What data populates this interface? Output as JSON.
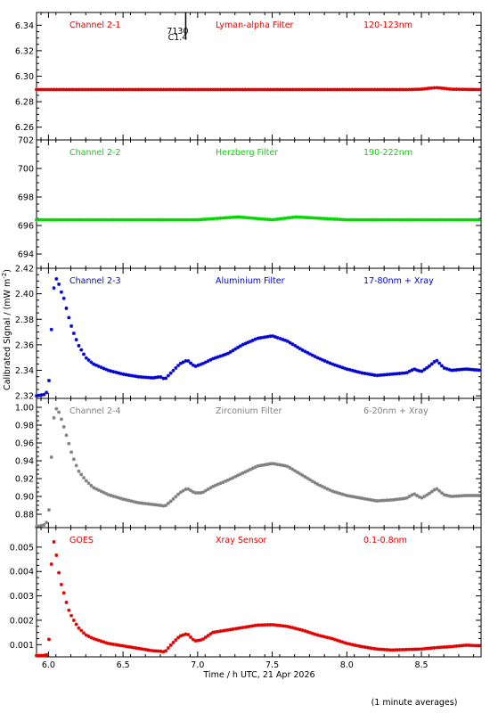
{
  "chart_data": {
    "type": "scatter",
    "x_label": "Time / h UTC, 21 Apr 2026",
    "y_label": "Calibrated Signal / (mW m",
    "y_label_sup": "-2",
    "y_label_end": ")",
    "footnote": "(1 minute averages)",
    "flare_annotation": {
      "lines": [
        "7130",
        "C1.4"
      ],
      "x": 6.92
    },
    "x_range": [
      5.92,
      8.9
    ],
    "x_ticks": [
      "6.0",
      "6.5",
      "7.0",
      "7.5",
      "8.0",
      "8.5"
    ],
    "x_tick_values": [
      6.0,
      6.5,
      7.0,
      7.5,
      8.0,
      8.5
    ],
    "panels": [
      {
        "channel": "Channel 2-1",
        "filter": "Lyman-alpha Filter",
        "band": "120-123nm",
        "color": "#e00000",
        "ylim": [
          6.25,
          6.35
        ],
        "y_ticks": [
          "6.26",
          "6.28",
          "6.30",
          "6.32",
          "6.34"
        ],
        "y_tick_values": [
          6.26,
          6.28,
          6.3,
          6.32,
          6.34
        ],
        "series_x": [
          5.92,
          6.5,
          7.0,
          7.5,
          8.0,
          8.4,
          8.5,
          8.55,
          8.6,
          8.65,
          8.7,
          8.9
        ],
        "series_y": [
          6.2895,
          6.2895,
          6.2895,
          6.2895,
          6.2895,
          6.2895,
          6.2898,
          6.2905,
          6.291,
          6.2905,
          6.2898,
          6.2895
        ]
      },
      {
        "channel": "Channel 2-2",
        "filter": "Herzberg Filter",
        "band": "190-222nm",
        "color": "#00d800",
        "ylim": [
          693,
          702
        ],
        "y_ticks": [
          "694",
          "696",
          "698",
          "700",
          "702"
        ],
        "y_tick_values": [
          694,
          696,
          698,
          700,
          702
        ],
        "series_x": [
          5.92,
          6.0,
          6.5,
          7.0,
          7.27,
          7.5,
          7.66,
          8.0,
          8.5,
          8.9
        ],
        "series_y": [
          696.4,
          696.4,
          696.4,
          696.4,
          696.6,
          696.4,
          696.6,
          696.4,
          696.4,
          696.4
        ],
        "_": ""
      },
      {
        "channel": "Channel 2-3",
        "filter": "Aluminium Filter",
        "band": "17-80nm + Xray",
        "color": "#0000d0",
        "ylim": [
          2.318,
          2.42
        ],
        "y_ticks": [
          "2.32",
          "2.34",
          "2.36",
          "2.38",
          "2.40",
          "2.42"
        ],
        "y_tick_values": [
          2.32,
          2.34,
          2.36,
          2.38,
          2.4,
          2.42
        ],
        "series_x": [
          5.92,
          5.97,
          6.0,
          6.02,
          6.04,
          6.06,
          6.08,
          6.1,
          6.13,
          6.16,
          6.2,
          6.25,
          6.3,
          6.4,
          6.5,
          6.6,
          6.7,
          6.75,
          6.78,
          6.83,
          6.88,
          6.93,
          6.98,
          7.03,
          7.1,
          7.2,
          7.3,
          7.4,
          7.5,
          7.6,
          7.7,
          7.8,
          7.9,
          8.0,
          8.1,
          8.2,
          8.3,
          8.4,
          8.45,
          8.5,
          8.55,
          8.6,
          8.65,
          8.7,
          8.8,
          8.9
        ],
        "series_y": [
          2.32,
          2.321,
          2.324,
          2.372,
          2.411,
          2.412,
          2.403,
          2.398,
          2.384,
          2.372,
          2.36,
          2.35,
          2.345,
          2.34,
          2.337,
          2.335,
          2.334,
          2.335,
          2.333,
          2.339,
          2.345,
          2.348,
          2.343,
          2.345,
          2.349,
          2.353,
          2.36,
          2.365,
          2.367,
          2.363,
          2.356,
          2.35,
          2.345,
          2.341,
          2.338,
          2.336,
          2.337,
          2.338,
          2.341,
          2.339,
          2.343,
          2.348,
          2.342,
          2.34,
          2.341,
          2.34
        ]
      },
      {
        "channel": "Channel 2-4",
        "filter": "Zirconium Filter",
        "band": "6-20nm + Xray",
        "color": "#808080",
        "ylim": [
          0.865,
          1.01
        ],
        "y_ticks": [
          "0.88",
          "0.90",
          "0.92",
          "0.94",
          "0.96",
          "0.98",
          "1.00"
        ],
        "y_tick_values": [
          0.88,
          0.9,
          0.92,
          0.94,
          0.96,
          0.98,
          1.0
        ],
        "series_x": [
          5.92,
          5.97,
          6.0,
          6.02,
          6.04,
          6.06,
          6.08,
          6.1,
          6.13,
          6.16,
          6.2,
          6.25,
          6.3,
          6.4,
          6.5,
          6.6,
          6.7,
          6.75,
          6.78,
          6.83,
          6.88,
          6.93,
          6.98,
          7.03,
          7.1,
          7.2,
          7.3,
          7.4,
          7.5,
          7.6,
          7.7,
          7.8,
          7.9,
          8.0,
          8.1,
          8.2,
          8.3,
          8.4,
          8.45,
          8.5,
          8.55,
          8.6,
          8.65,
          8.7,
          8.8,
          8.9
        ],
        "series_y": [
          0.866,
          0.868,
          0.873,
          0.944,
          0.997,
          0.999,
          0.99,
          0.98,
          0.963,
          0.946,
          0.929,
          0.918,
          0.91,
          0.902,
          0.897,
          0.893,
          0.891,
          0.89,
          0.889,
          0.896,
          0.904,
          0.909,
          0.904,
          0.904,
          0.911,
          0.918,
          0.926,
          0.934,
          0.937,
          0.934,
          0.924,
          0.914,
          0.906,
          0.901,
          0.898,
          0.895,
          0.896,
          0.898,
          0.903,
          0.898,
          0.903,
          0.909,
          0.902,
          0.9,
          0.901,
          0.901
        ]
      },
      {
        "channel": "GOES",
        "filter": "Xray Sensor",
        "band": "0.1-0.8nm",
        "color": "#e00000",
        "ylim": [
          0.0005,
          0.0058
        ],
        "y_ticks": [
          "0.001",
          "0.002",
          "0.003",
          "0.004",
          "0.005"
        ],
        "y_tick_values": [
          0.001,
          0.002,
          0.003,
          0.004,
          0.005
        ],
        "series_x": [
          5.92,
          5.97,
          6.0,
          6.02,
          6.04,
          6.06,
          6.08,
          6.1,
          6.13,
          6.16,
          6.2,
          6.25,
          6.3,
          6.4,
          6.5,
          6.6,
          6.7,
          6.75,
          6.78,
          6.83,
          6.88,
          6.93,
          6.98,
          7.03,
          7.1,
          7.2,
          7.3,
          7.4,
          7.5,
          7.6,
          7.7,
          7.8,
          7.9,
          8.0,
          8.1,
          8.2,
          8.3,
          8.4,
          8.5,
          8.6,
          8.7,
          8.8,
          8.9
        ],
        "series_y": [
          0.00055,
          0.00056,
          0.0006,
          0.0043,
          0.0054,
          0.0043,
          0.0036,
          0.0032,
          0.0025,
          0.0021,
          0.0017,
          0.0014,
          0.00125,
          0.00105,
          0.00095,
          0.00085,
          0.00075,
          0.00073,
          0.0007,
          0.00105,
          0.00135,
          0.00145,
          0.00115,
          0.0012,
          0.0015,
          0.0016,
          0.0017,
          0.0018,
          0.00182,
          0.00175,
          0.0016,
          0.0014,
          0.00125,
          0.00105,
          0.00092,
          0.00082,
          0.00078,
          0.0008,
          0.00082,
          0.00088,
          0.00092,
          0.00098,
          0.00095
        ]
      }
    ]
  }
}
